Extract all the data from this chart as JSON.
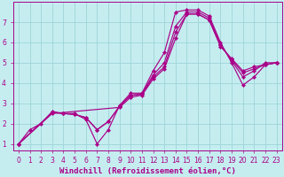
{
  "background_color": "#c5edf0",
  "grid_color": "#9dd4d8",
  "line_color": "#aa0088",
  "xlim": [
    -0.5,
    23.5
  ],
  "ylim": [
    0.7,
    8.0
  ],
  "xticks": [
    0,
    1,
    2,
    3,
    4,
    5,
    6,
    7,
    8,
    9,
    10,
    11,
    12,
    13,
    14,
    15,
    16,
    17,
    18,
    19,
    20,
    21,
    22,
    23
  ],
  "yticks": [
    1,
    2,
    3,
    4,
    5,
    6,
    7
  ],
  "xlabel": "Windchill (Refroidissement éolien,°C)",
  "series": [
    {
      "x": [
        0,
        1,
        2,
        3,
        4,
        5,
        6,
        7,
        8,
        9,
        10,
        11,
        12,
        13,
        14,
        15,
        16,
        17,
        18,
        19,
        20,
        21,
        22,
        23
      ],
      "y": [
        1.0,
        1.7,
        2.0,
        2.6,
        2.5,
        2.5,
        2.2,
        1.0,
        1.7,
        2.9,
        3.5,
        3.5,
        4.6,
        5.5,
        7.5,
        7.6,
        7.6,
        7.3,
        6.0,
        5.0,
        3.9,
        4.3,
        4.9,
        5.0
      ]
    },
    {
      "x": [
        0,
        3,
        4,
        5,
        6,
        7,
        8,
        9,
        10,
        11,
        12,
        13,
        14,
        15,
        16,
        17,
        18,
        19,
        20,
        21,
        22,
        23
      ],
      "y": [
        1.0,
        2.55,
        2.5,
        2.45,
        2.3,
        1.7,
        2.1,
        2.85,
        3.4,
        3.45,
        4.4,
        5.0,
        6.8,
        7.5,
        7.5,
        7.2,
        5.9,
        5.1,
        4.3,
        4.6,
        5.0,
        5.0
      ]
    },
    {
      "x": [
        0,
        3,
        4,
        5,
        6,
        7,
        8,
        9,
        10,
        11,
        12,
        13,
        14,
        15,
        16,
        17,
        18,
        19,
        20,
        21,
        22,
        23
      ],
      "y": [
        1.0,
        2.55,
        2.5,
        2.45,
        2.3,
        1.7,
        2.1,
        2.85,
        3.4,
        3.45,
        4.3,
        4.8,
        6.5,
        7.4,
        7.4,
        7.1,
        5.85,
        5.15,
        4.5,
        4.7,
        4.9,
        5.0
      ]
    },
    {
      "x": [
        0,
        3,
        9,
        10,
        11,
        12,
        13,
        14,
        15,
        16,
        17,
        18,
        19,
        20,
        21,
        22,
        23
      ],
      "y": [
        1.0,
        2.5,
        2.8,
        3.3,
        3.4,
        4.2,
        4.7,
        6.2,
        7.4,
        7.4,
        7.1,
        5.8,
        5.2,
        4.6,
        4.8,
        4.9,
        5.0
      ]
    }
  ],
  "tick_fontsize": 5.5,
  "xlabel_fontsize": 6.5,
  "lw": 0.85,
  "ms": 2.2
}
